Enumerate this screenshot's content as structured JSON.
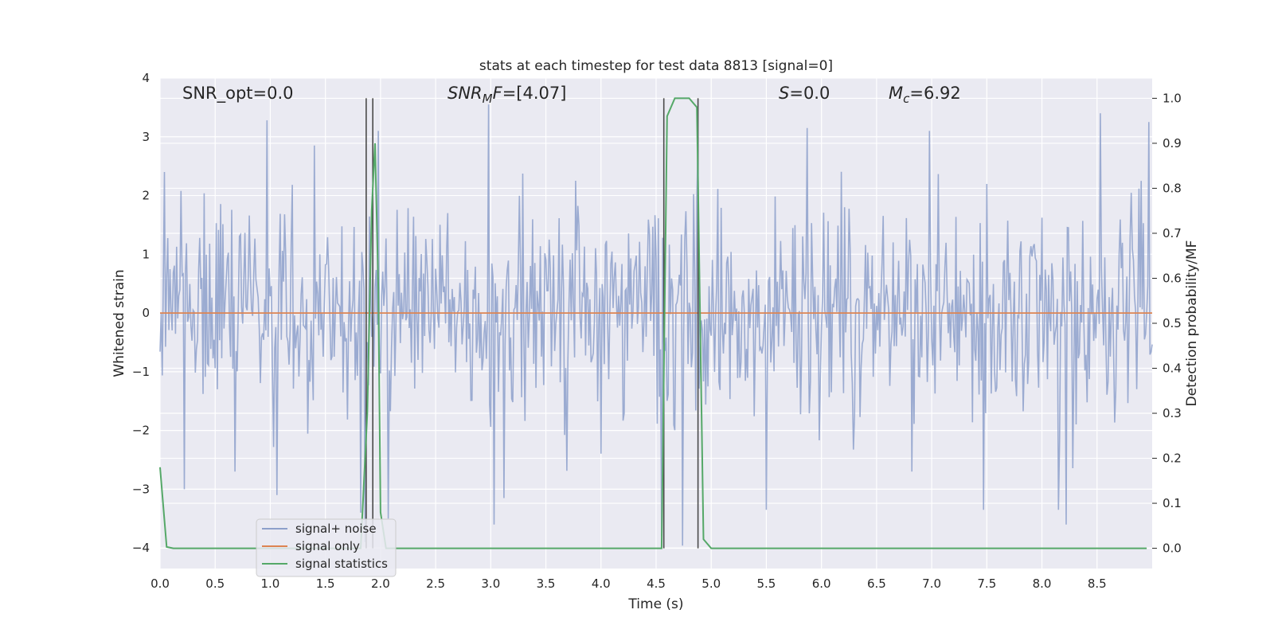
{
  "chart_data": {
    "type": "line",
    "title": "stats at each timestep for test data 8813 [signal=0]",
    "xlabel": "Time (s)",
    "ylabel": "Whitened strain",
    "ylabel_right": "Detection probability/MF",
    "xlim": [
      0,
      9.0
    ],
    "ylim": [
      -4.35,
      4.0
    ],
    "ylim_right": [
      -0.045,
      1.045
    ],
    "x_ticks": [
      "0.0",
      "0.5",
      "1.0",
      "1.5",
      "2.0",
      "2.5",
      "3.0",
      "3.5",
      "4.0",
      "4.5",
      "5.0",
      "5.5",
      "6.0",
      "6.5",
      "7.0",
      "7.5",
      "8.0",
      "8.5"
    ],
    "y_ticks": [
      "−4",
      "−3",
      "−2",
      "−1",
      "0",
      "1",
      "2",
      "3",
      "4"
    ],
    "y_ticks_right": [
      "0.0",
      "0.1",
      "0.2",
      "0.3",
      "0.4",
      "0.5",
      "0.6",
      "0.7",
      "0.8",
      "0.9",
      "1.0"
    ],
    "grid": true,
    "legend_position": "lower-left",
    "annotations": {
      "snr_opt": {
        "prefix": "SNR_opt",
        "value": "=0.0"
      },
      "snr_mf": {
        "base": "SNR",
        "sub": "M",
        "suffix": "F",
        "value": "=[4.07]"
      },
      "s": {
        "base": "S",
        "value": "=0.0"
      },
      "mc": {
        "base": "M",
        "sub": "c",
        "value": "=6.92"
      }
    },
    "vertical_lines": [
      1.87,
      1.93,
      4.57,
      4.88
    ],
    "series": [
      {
        "name": "signal+ noise",
        "color": "#8da0cb",
        "style": "noise-band",
        "samples_per_second": 100,
        "sigma": 0.9,
        "seed": 8813,
        "peak_values": [
          {
            "x": 0.04,
            "y": 2.4
          },
          {
            "x": 0.22,
            "y": -3.0
          },
          {
            "x": 0.68,
            "y": -2.7
          },
          {
            "x": 0.97,
            "y": 3.28
          },
          {
            "x": 1.06,
            "y": -3.1
          },
          {
            "x": 1.4,
            "y": 2.85
          },
          {
            "x": 1.82,
            "y": -3.4
          },
          {
            "x": 1.86,
            "y": -3.9
          },
          {
            "x": 1.98,
            "y": 3.1
          },
          {
            "x": 2.07,
            "y": -3.5
          },
          {
            "x": 2.98,
            "y": 3.55
          },
          {
            "x": 3.03,
            "y": -3.6
          },
          {
            "x": 3.12,
            "y": -3.15
          },
          {
            "x": 4.55,
            "y": -3.8
          },
          {
            "x": 4.74,
            "y": -3.96
          },
          {
            "x": 4.88,
            "y": 3.0
          },
          {
            "x": 5.5,
            "y": -3.35
          },
          {
            "x": 5.87,
            "y": 3.15
          },
          {
            "x": 6.98,
            "y": 3.1
          },
          {
            "x": 7.47,
            "y": -3.35
          },
          {
            "x": 8.15,
            "y": -3.35
          },
          {
            "x": 8.22,
            "y": -3.6
          },
          {
            "x": 8.53,
            "y": 3.4
          },
          {
            "x": 8.97,
            "y": 3.25
          }
        ]
      },
      {
        "name": "signal only",
        "color": "#dd8452",
        "axis": "left",
        "points": [
          [
            0,
            0
          ],
          [
            9.0,
            0
          ]
        ]
      },
      {
        "name": "signal statistics",
        "color": "#55a868",
        "axis": "right",
        "points": [
          [
            0.0,
            0.18
          ],
          [
            0.06,
            0.003
          ],
          [
            0.12,
            0.0
          ],
          [
            1.82,
            0.0
          ],
          [
            1.88,
            0.3
          ],
          [
            1.92,
            0.75
          ],
          [
            1.95,
            0.9
          ],
          [
            1.98,
            0.58
          ],
          [
            2.0,
            0.08
          ],
          [
            2.05,
            0.0
          ],
          [
            4.55,
            0.0
          ],
          [
            4.6,
            0.96
          ],
          [
            4.67,
            1.0
          ],
          [
            4.8,
            1.0
          ],
          [
            4.87,
            0.98
          ],
          [
            4.93,
            0.02
          ],
          [
            5.0,
            0.0
          ],
          [
            8.95,
            0.0
          ]
        ]
      }
    ]
  }
}
